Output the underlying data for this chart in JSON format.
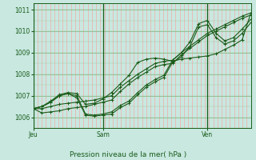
{
  "title": "Pression niveau de la mer( hPa )",
  "xlabel_ticks": [
    "Jeu",
    "Sam",
    "Ven"
  ],
  "xlabel_tick_x": [
    0.12,
    0.33,
    0.75
  ],
  "ylim": [
    1005.5,
    1011.3
  ],
  "yticks": [
    1006,
    1007,
    1008,
    1009,
    1010,
    1011
  ],
  "bg_color": "#c8e8e0",
  "line_color": "#1a5c1a",
  "marker": "+",
  "markersize": 3,
  "linewidth": 0.8,
  "series": [
    [
      1006.4,
      1006.4,
      1006.5,
      1006.6,
      1006.65,
      1006.7,
      1006.75,
      1006.8,
      1006.9,
      1007.0,
      1007.4,
      1007.7,
      1008.0,
      1008.25,
      1008.5,
      1008.6,
      1008.65,
      1009.0,
      1009.3,
      1009.6,
      1009.9,
      1010.1,
      1010.3,
      1010.5,
      1010.7,
      1010.85
    ],
    [
      1006.4,
      1006.2,
      1006.25,
      1006.3,
      1006.4,
      1006.45,
      1006.5,
      1006.6,
      1006.7,
      1006.8,
      1007.2,
      1007.55,
      1007.85,
      1008.1,
      1008.35,
      1008.45,
      1008.5,
      1008.9,
      1009.2,
      1009.5,
      1009.8,
      1010.0,
      1010.2,
      1010.4,
      1010.6,
      1010.75
    ],
    [
      1006.4,
      1006.5,
      1006.7,
      1007.0,
      1007.1,
      1006.9,
      1006.1,
      1006.05,
      1006.1,
      1006.15,
      1006.45,
      1006.65,
      1007.05,
      1007.4,
      1007.65,
      1007.85,
      1008.55,
      1008.8,
      1009.3,
      1010.2,
      1010.3,
      1009.7,
      1009.4,
      1009.55,
      1009.9,
      1010.4
    ],
    [
      1006.4,
      1006.5,
      1006.7,
      1007.0,
      1007.1,
      1007.0,
      1006.15,
      1006.1,
      1006.15,
      1006.25,
      1006.55,
      1006.75,
      1007.15,
      1007.5,
      1007.75,
      1007.95,
      1008.65,
      1009.0,
      1009.5,
      1010.35,
      1010.5,
      1009.9,
      1009.55,
      1009.7,
      1010.1,
      1010.55
    ],
    [
      1006.4,
      1006.5,
      1006.75,
      1007.05,
      1007.15,
      1007.1,
      1006.6,
      1006.65,
      1006.85,
      1007.15,
      1007.55,
      1007.95,
      1008.55,
      1008.7,
      1008.75,
      1008.7,
      1008.6,
      1008.7,
      1008.75,
      1008.8,
      1008.85,
      1008.95,
      1009.15,
      1009.35,
      1009.6,
      1010.85
    ]
  ],
  "n_points": 26,
  "vlines": [
    0,
    8,
    20
  ],
  "n_vertical_red": 52,
  "n_horizontal_green": 12
}
